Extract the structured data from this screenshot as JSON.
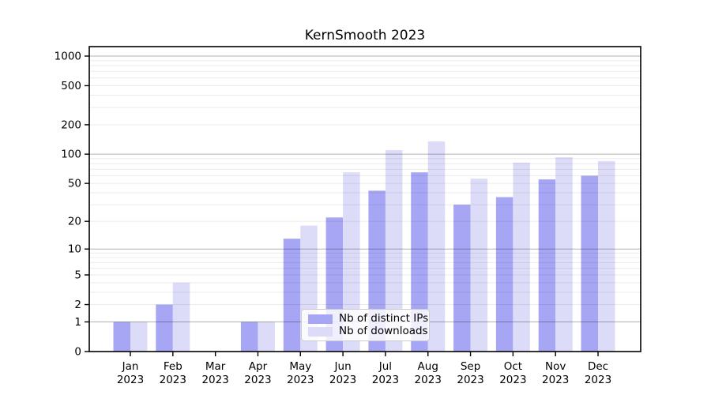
{
  "chart_data": {
    "type": "bar",
    "title": "KernSmooth 2023",
    "categories": [
      "Jan",
      "Feb",
      "Mar",
      "Apr",
      "May",
      "Jun",
      "Jul",
      "Aug",
      "Sep",
      "Oct",
      "Nov",
      "Dec"
    ],
    "year_label": "2023",
    "series": [
      {
        "name": "Nb of distinct IPs",
        "color": "#a6a6f4",
        "values": [
          1,
          2,
          0,
          1,
          13,
          22,
          42,
          65,
          30,
          36,
          55,
          60
        ]
      },
      {
        "name": "Nb of downloads",
        "color": "#dcdcf8",
        "values": [
          1,
          4,
          0,
          1,
          18,
          65,
          110,
          135,
          56,
          82,
          93,
          85
        ]
      }
    ],
    "y_ticks": [
      0,
      1,
      2,
      5,
      10,
      20,
      50,
      100,
      200,
      500,
      1000
    ],
    "y_minor_grid": [
      2,
      3,
      4,
      5,
      6,
      7,
      8,
      9,
      20,
      30,
      40,
      50,
      60,
      70,
      80,
      90,
      200,
      300,
      400,
      500,
      600,
      700,
      800,
      900
    ],
    "y_major_grid": [
      1,
      10,
      100,
      1000
    ],
    "scale": "log10(value+1)",
    "ylim": [
      0,
      1270
    ],
    "grid": "horizontal major+minor",
    "legend_position": "inside lower-center",
    "colors": {
      "major_grid": "rgba(0,0,0,0.30)",
      "minor_grid": "rgba(0,0,0,0.08)",
      "axis": "#000000",
      "text": "#000000"
    }
  }
}
